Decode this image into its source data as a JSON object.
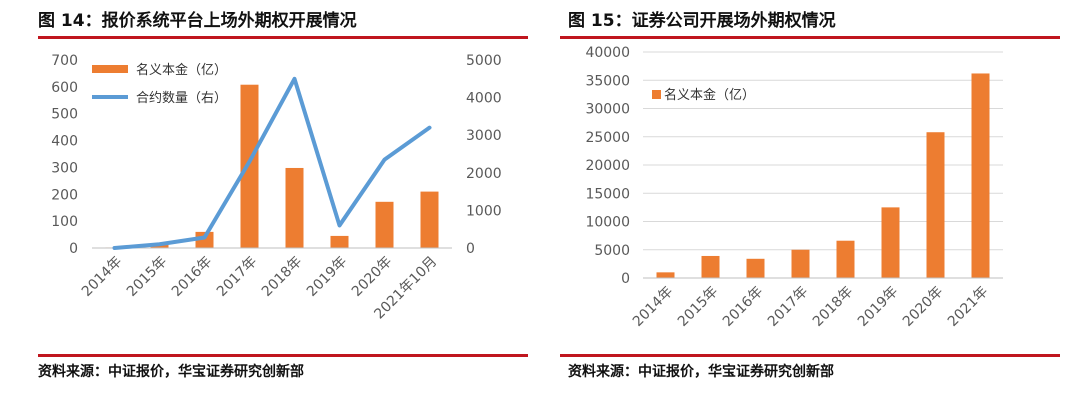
{
  "colors": {
    "bar": "#ed7d31",
    "line": "#5b9bd5",
    "rule": "#c0161e",
    "grid": "#d9d9d9",
    "axis_text": "#595959"
  },
  "left": {
    "title": "图 14：报价系统平台上场外期权开展情况",
    "source": "资料来源：中证报价，华宝证券研究创新部"
  },
  "right": {
    "title": "图 15：证券公司开展场外期权情况",
    "source": "资料来源：中证报价，华宝证券研究创新部"
  },
  "chart_data": [
    {
      "type": "bar+line",
      "categories": [
        "2014年",
        "2015年",
        "2016年",
        "2017年",
        "2018年",
        "2019年",
        "2020年",
        "2021年10月"
      ],
      "series": [
        {
          "name": "名义本金（亿）",
          "type": "bar",
          "axis": "left",
          "values": [
            2,
            12,
            60,
            608,
            298,
            45,
            172,
            210
          ]
        },
        {
          "name": "合约数量（右）",
          "type": "line",
          "axis": "right",
          "values": [
            0,
            100,
            280,
            2300,
            4500,
            600,
            2350,
            3200
          ]
        }
      ],
      "y_left": {
        "lim": [
          0,
          700
        ],
        "ticks": [
          0,
          100,
          200,
          300,
          400,
          500,
          600,
          700
        ]
      },
      "y_right": {
        "lim": [
          0,
          5000
        ],
        "ticks": [
          0,
          1000,
          2000,
          3000,
          4000,
          5000
        ]
      },
      "grid": false,
      "legend": "top-left"
    },
    {
      "type": "bar",
      "categories": [
        "2014年",
        "2015年",
        "2016年",
        "2017年",
        "2018年",
        "2019年",
        "2020年",
        "2021年"
      ],
      "series": [
        {
          "name": "名义本金（亿）",
          "values": [
            1000,
            3900,
            3400,
            5000,
            6600,
            12500,
            25800,
            36200
          ]
        }
      ],
      "ylim": [
        0,
        40000
      ],
      "yticks": [
        0,
        5000,
        10000,
        15000,
        20000,
        25000,
        30000,
        35000,
        40000
      ],
      "grid": true,
      "legend": "top-left"
    }
  ]
}
